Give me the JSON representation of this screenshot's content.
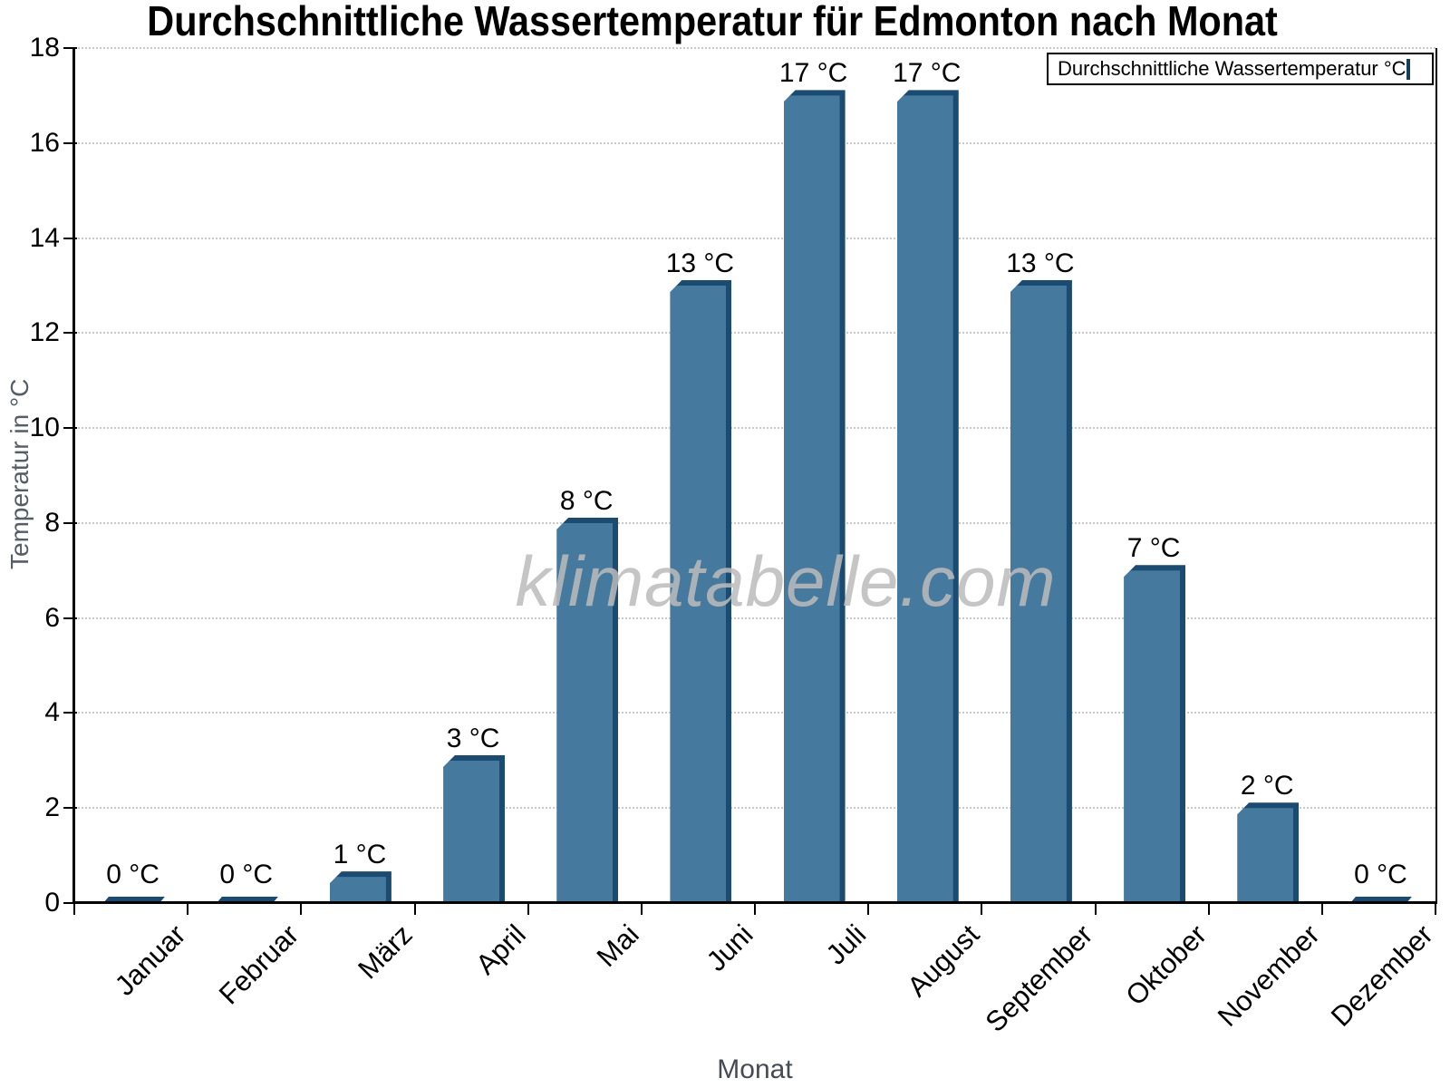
{
  "watermark": {
    "text": "klimatabelle.com"
  },
  "legend": {
    "label": "Durchschnittliche Wassertemperatur °C"
  },
  "chart_data": {
    "type": "bar",
    "title": "Durchschnittliche Wassertemperatur für Edmonton nach Monat",
    "xlabel": "Monat",
    "ylabel": "Temperatur in °C",
    "categories": [
      "Januar",
      "Februar",
      "März",
      "April",
      "Mai",
      "Juni",
      "Juli",
      "August",
      "September",
      "Oktober",
      "November",
      "Dezember"
    ],
    "values": [
      0,
      0,
      1,
      3,
      8,
      13,
      17,
      17,
      13,
      7,
      2,
      0
    ],
    "value_labels": [
      "0 °C",
      "0 °C",
      "1 °C",
      "3 °C",
      "8 °C",
      "13 °C",
      "17 °C",
      "17 °C",
      "13 °C",
      "7 °C",
      "2 °C",
      "0 °C"
    ],
    "plotted_values": [
      0.08,
      0.08,
      0.55,
      3,
      8,
      13,
      17,
      17,
      13,
      7,
      2,
      0.08
    ],
    "ylim": [
      0,
      18
    ],
    "yticks": [
      0,
      2,
      4,
      6,
      8,
      10,
      12,
      14,
      16,
      18
    ],
    "grid": "horizontal-dotted",
    "legend_position": "top-right",
    "colors": {
      "bar_face": "#45799E",
      "bar_shadow": "#1B4B70",
      "grid": "#c9c9c9",
      "axis": "#000000",
      "watermark": "#bcbcbc",
      "axis_label_text": "#4a5058"
    }
  }
}
